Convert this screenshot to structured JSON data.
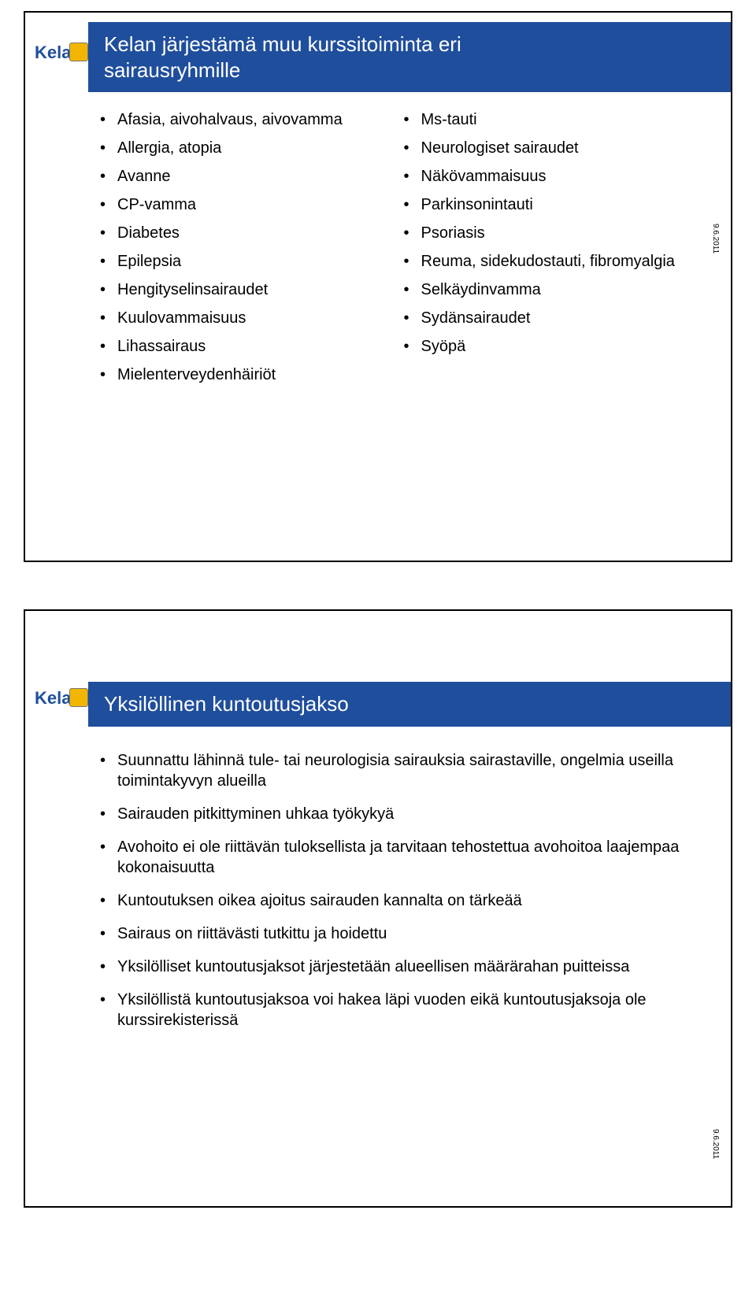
{
  "slide1": {
    "title_line1": "Kelan järjestämä muu kurssitoiminta eri",
    "title_line2": "sairausryhmille",
    "left_items": [
      "Afasia, aivohalvaus, aivovamma",
      "Allergia, atopia",
      "Avanne",
      "CP-vamma",
      "Diabetes",
      "Epilepsia",
      "Hengityselinsairaudet",
      "Kuulovammaisuus",
      "Lihassairaus",
      "Mielenterveydenhäiriöt"
    ],
    "right_items": [
      "Ms-tauti",
      "Neurologiset sairaudet",
      "Näkövammaisuus",
      "Parkinsonintauti",
      "Psoriasis",
      "Reuma, sidekudostauti, fibromyalgia",
      "Selkäydinvamma",
      "Sydänsairaudet",
      "Syöpä"
    ],
    "date": "9.6.2011"
  },
  "slide2": {
    "title": "Yksilöllinen kuntoutusjakso",
    "items": [
      "Suunnattu lähinnä tule- tai neurologisia sairauksia sairastaville, ongelmia useilla toimintakyvyn alueilla",
      "Sairauden pitkittyminen uhkaa työkykyä",
      "Avohoito ei ole riittävän tuloksellista ja tarvitaan tehostettua avohoitoa laajempaa kokonaisuutta",
      "Kuntoutuksen oikea ajoitus sairauden kannalta on tärkeää",
      "Sairaus on riittävästi tutkittu ja hoidettu",
      "Yksilölliset kuntoutusjaksot järjestetään alueellisen määrärahan puitteissa",
      "Yksilöllistä kuntoutusjaksoa voi hakea läpi vuoden eikä kuntoutusjaksoja ole kurssirekisterissä"
    ],
    "date": "9.6.2011"
  },
  "logo_text": "Kela",
  "colors": {
    "title_bg": "#1f4e9c",
    "title_fg": "#ffffff",
    "logo_blue": "#1f4e9c",
    "logo_yellow": "#f2b600",
    "text": "#000000",
    "page_bg": "#ffffff"
  },
  "typography": {
    "title_fontsize_pt": 20,
    "body_fontsize_pt": 15,
    "font_family": "Arial"
  }
}
